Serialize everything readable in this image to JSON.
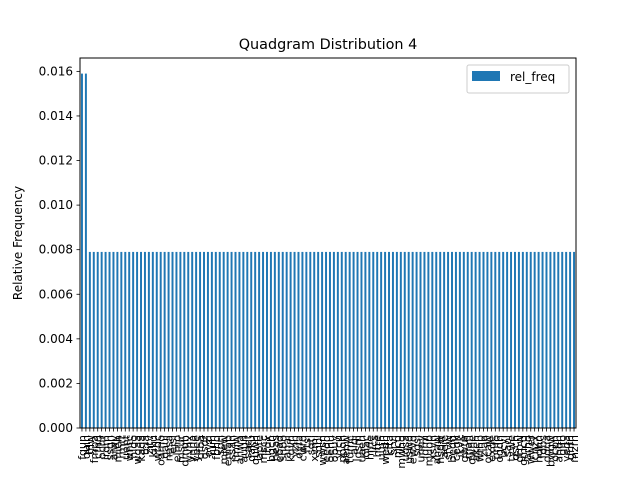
{
  "chart_data": {
    "type": "bar",
    "title": "Quadgram Distribution 4",
    "xlabel": "",
    "ylabel": "Relative Frequency",
    "ylim": [
      0,
      0.0166
    ],
    "yticks": [
      0.0,
      0.002,
      0.004,
      0.006,
      0.008,
      0.01,
      0.012,
      0.014,
      0.016
    ],
    "ytick_labels": [
      "0.000",
      "0.002",
      "0.004",
      "0.006",
      "0.008",
      "0.010",
      "0.012",
      "0.014",
      "0.016"
    ],
    "grid": false,
    "legend_position": "top-right",
    "bar_color": "#1f77b4",
    "series": [
      {
        "name": "rel_freq",
        "values": [
          0.0159,
          0.0159,
          0.0079,
          0.0079,
          0.0079,
          0.0079,
          0.0079,
          0.0079,
          0.0079,
          0.0079,
          0.0079,
          0.0079,
          0.0079,
          0.0079,
          0.0079,
          0.0079,
          0.0079,
          0.0079,
          0.0079,
          0.0079,
          0.0079,
          0.0079,
          0.0079,
          0.0079,
          0.0079,
          0.0079,
          0.0079,
          0.0079,
          0.0079,
          0.0079,
          0.0079,
          0.0079,
          0.0079,
          0.0079,
          0.0079,
          0.0079,
          0.0079,
          0.0079,
          0.0079,
          0.0079,
          0.0079,
          0.0079,
          0.0079,
          0.0079,
          0.0079,
          0.0079,
          0.0079,
          0.0079,
          0.0079,
          0.0079,
          0.0079,
          0.0079,
          0.0079,
          0.0079,
          0.0079,
          0.0079,
          0.0079,
          0.0079,
          0.0079,
          0.0079,
          0.0079,
          0.0079,
          0.0079,
          0.0079,
          0.0079,
          0.0079,
          0.0079,
          0.0079,
          0.0079,
          0.0079,
          0.0079,
          0.0079,
          0.0079,
          0.0079,
          0.0079,
          0.0079,
          0.0079,
          0.0079,
          0.0079,
          0.0079,
          0.0079,
          0.0079,
          0.0079,
          0.0079,
          0.0079,
          0.0079,
          0.0079,
          0.0079,
          0.0079,
          0.0079,
          0.0079,
          0.0079,
          0.0079,
          0.0079,
          0.0079,
          0.0079,
          0.0079,
          0.0079,
          0.0079,
          0.0079,
          0.0079,
          0.0079,
          0.0079,
          0.0079,
          0.0079,
          0.0079,
          0.0079,
          0.0079,
          0.0079,
          0.0079,
          0.0079,
          0.0079,
          0.0079,
          0.0079,
          0.0079,
          0.0079,
          0.0079,
          0.0079,
          0.0079,
          0.0079,
          0.0079,
          0.0079,
          0.0079,
          0.0079,
          0.0079,
          0.0079
        ]
      }
    ],
    "categories": [
      "fqun",
      "quin",
      "fflw",
      "fmpa",
      "cfnq",
      "ochr",
      "irdm",
      "ssgh",
      "aiwy",
      "mieh",
      "rmtt",
      "ueht",
      "wntc",
      "nldo",
      "wqaa",
      "kaqa",
      "tcia",
      "zitv",
      "kiku",
      "wtdc",
      "oamo",
      "gaui",
      "nasa",
      "ejsi",
      "elmo",
      "msur",
      "qmqh",
      "yvhx",
      "ynna",
      "yeee",
      "ofba",
      "gsdr",
      "ovzi",
      "iuih",
      "fbhd",
      "sprl",
      "mjew",
      "emab",
      "ssah",
      "tmiw",
      "ahwa",
      "auun",
      "saet",
      "qaku",
      "quwh",
      "apfe",
      "mscc",
      "itdx",
      "bgch",
      "heas",
      "ebad",
      "shbo",
      "anai",
      "kqvn",
      "yzjh",
      "oyfa",
      "cwrd",
      "rtsl",
      "sqtl",
      "xvmi",
      "sqbi",
      "wwsn",
      "eeqq",
      "oehu",
      "obuy",
      "yrcu",
      "ppoh",
      "aenw",
      "tumc",
      "aiqi",
      "lgsm",
      "uaen",
      "oiac",
      "hrne",
      "ljcs",
      "htre",
      "uutn",
      "wedh",
      "kfta",
      "srvi",
      "njcq",
      "mwhd",
      "ugsa",
      "uswq",
      "ewvd",
      "sgsi",
      "unny",
      "ldmi",
      "muop",
      "xsvn",
      "ahaw",
      "hsqw",
      "aeje",
      "sfvw",
      "beqq",
      "cegk",
      "ikvk",
      "gwur",
      "mafl",
      "qwhe",
      "akeh",
      "wrnp",
      "ziaa",
      "ocaw",
      "exde",
      "pnfo",
      "ogdh",
      "ucyi",
      "saol",
      "tywe",
      "qsch",
      "grpw",
      "gmcd",
      "arhq",
      "wwer",
      "cnzx",
      "hdhn",
      "fdbs",
      "oqua",
      "bwgw",
      "ocpn",
      "ahqn",
      "gifo",
      "yeqa",
      "gnfn",
      "mzrn"
    ]
  }
}
